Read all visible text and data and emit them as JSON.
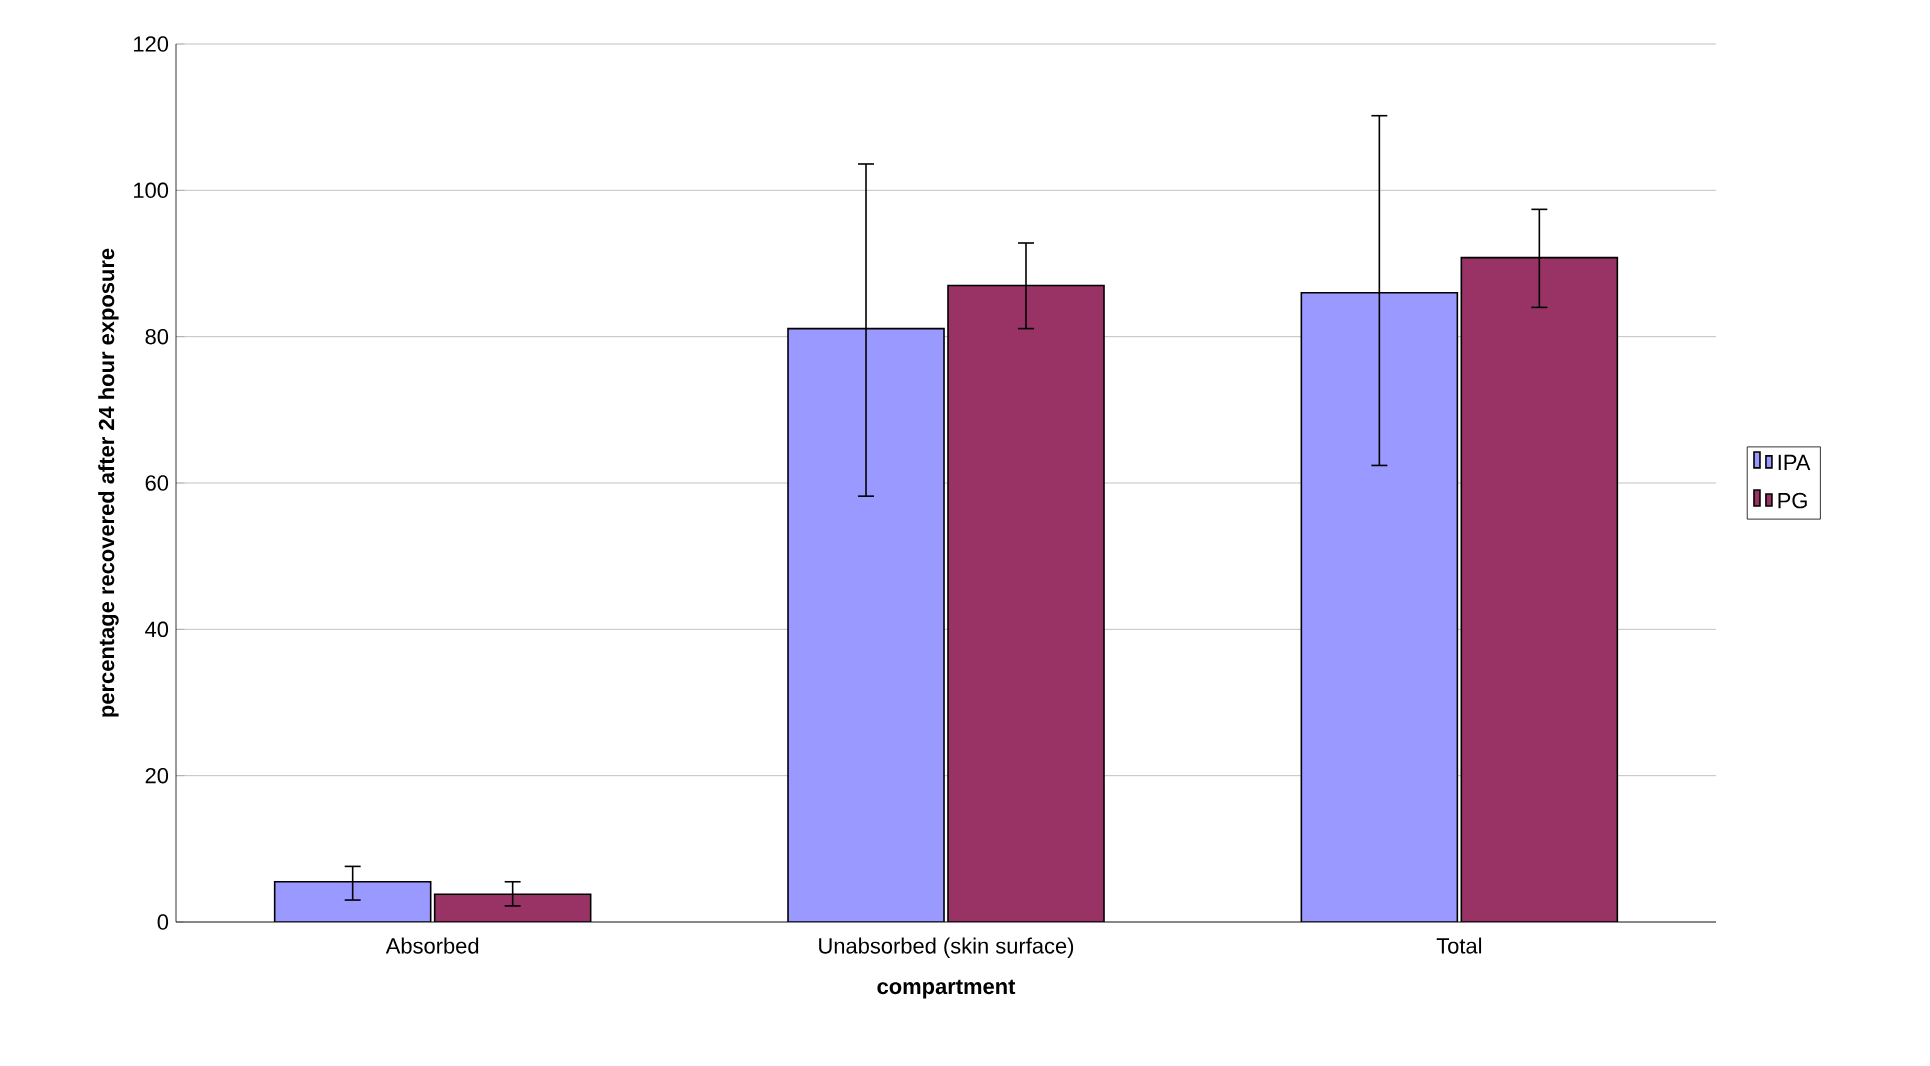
{
  "chart_data": {
    "type": "bar",
    "xlabel": "compartment",
    "ylabel": "percentage recovered after 24 hour exposure",
    "categories": [
      "Absorbed",
      "Unabsorbed (skin surface)",
      "Total"
    ],
    "series": [
      {
        "name": "IPA",
        "color": "#9999ff",
        "values": [
          5.5,
          81.1,
          86.0
        ],
        "errors": [
          [
            3.0,
            7.6
          ],
          [
            58.2,
            103.6
          ],
          [
            62.4,
            110.2
          ]
        ]
      },
      {
        "name": "PG",
        "color": "#993366",
        "values": [
          3.8,
          87.0,
          90.8
        ],
        "errors": [
          [
            2.2,
            5.5
          ],
          [
            81.1,
            92.8
          ],
          [
            84.0,
            97.4
          ]
        ]
      }
    ],
    "ylim": [
      0,
      120
    ],
    "yticks": [
      0,
      20,
      40,
      60,
      80,
      100,
      120
    ],
    "grid": "y",
    "legend": "right"
  }
}
